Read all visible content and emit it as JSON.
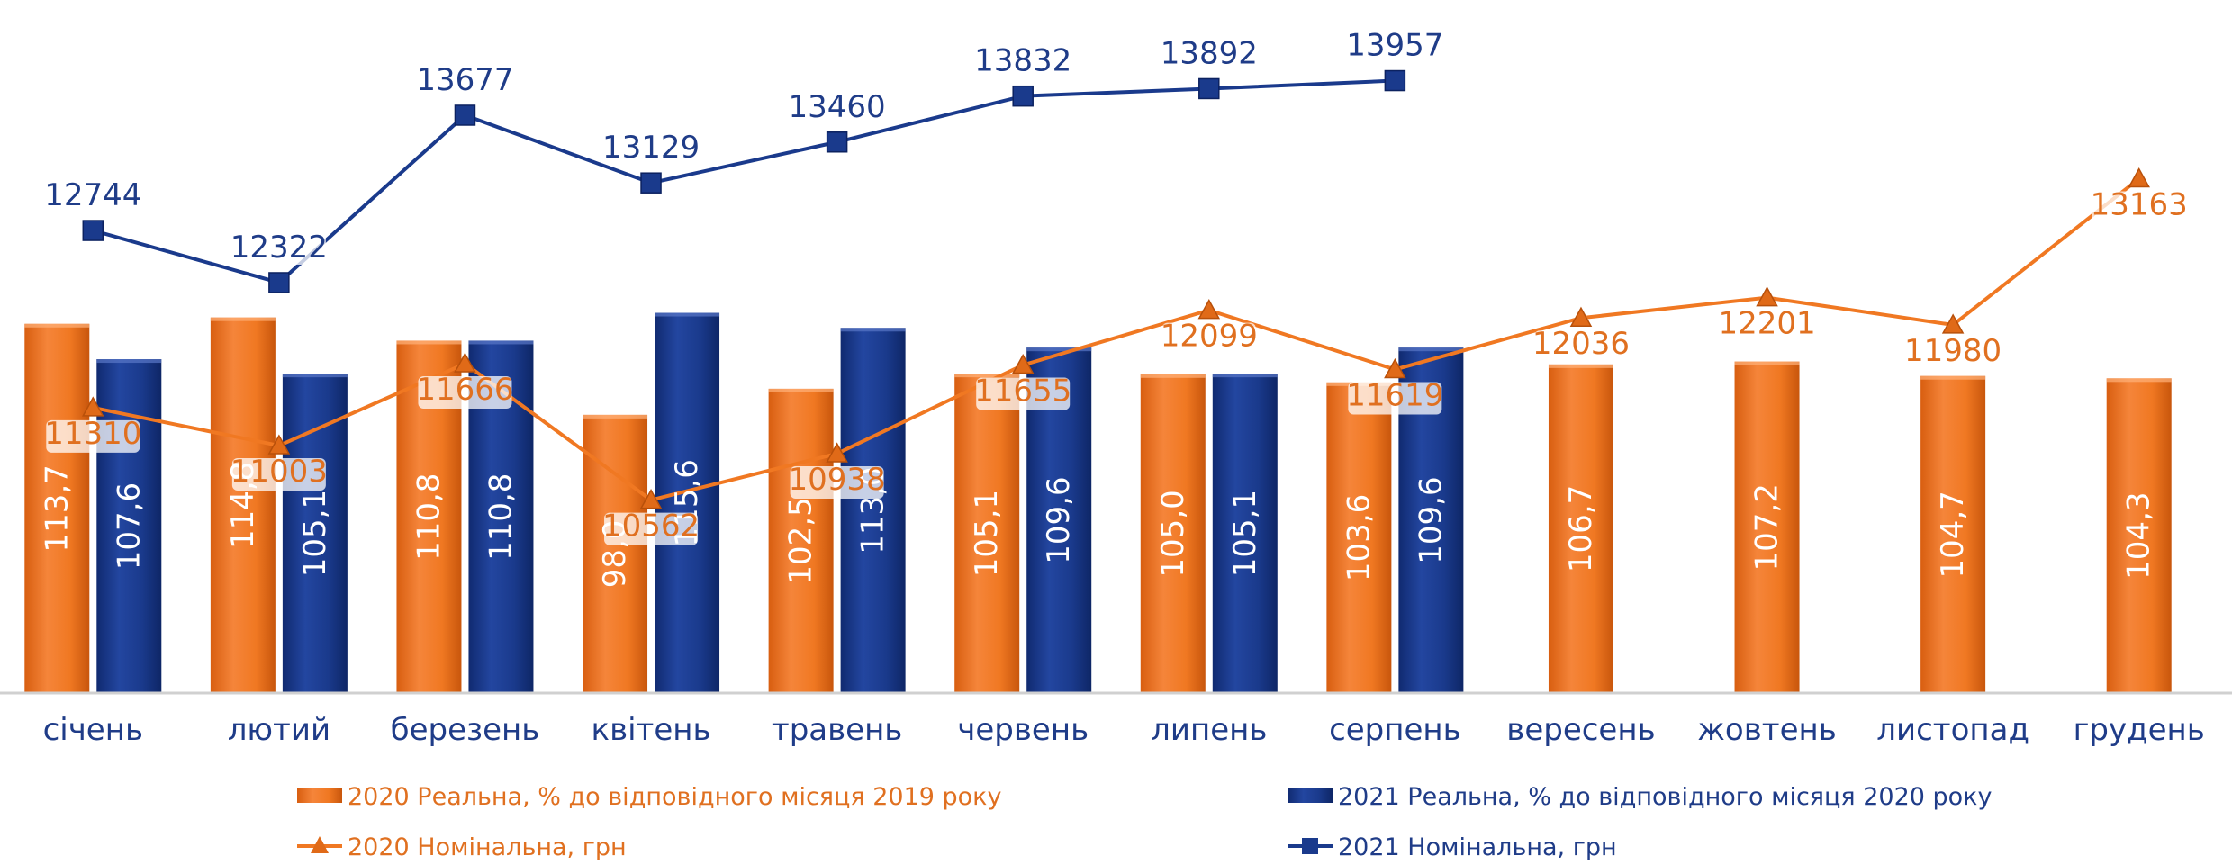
{
  "chart_data": {
    "type": "bar",
    "categories": [
      "січень",
      "лютий",
      "березень",
      "квітень",
      "травень",
      "червень",
      "липень",
      "серпень",
      "вересень",
      "жовтень",
      "листопад",
      "грудень"
    ],
    "series": [
      {
        "name": "2020 Реальна, % до відповідного місяця 2019 року",
        "kind": "bar",
        "color": "#f07822",
        "values": [
          113.7,
          114.8,
          110.8,
          98.0,
          102.5,
          105.1,
          105.0,
          103.6,
          106.7,
          107.2,
          104.7,
          104.3
        ],
        "labels": [
          "113,7",
          "114,8",
          "110,8",
          "98,0",
          "102,5",
          "105,1",
          "105,0",
          "103,6",
          "106,7",
          "107,2",
          "104,7",
          "104,3"
        ]
      },
      {
        "name": "2021 Реальна, % до відповідного місяця 2020 року",
        "kind": "bar",
        "color": "#1a3a8c",
        "values": [
          107.6,
          105.1,
          110.8,
          115.6,
          113.0,
          109.6,
          105.1,
          109.6,
          null,
          null,
          null,
          null
        ],
        "labels": [
          "107,6",
          "105,1",
          "110,8",
          "115,6",
          "113,0",
          "109,6",
          "105,1",
          "109,6",
          null,
          null,
          null,
          null
        ]
      },
      {
        "name": "2020 Номінальна, грн",
        "kind": "line",
        "marker": "triangle",
        "color": "#f07822",
        "values": [
          11310,
          11003,
          11666,
          10562,
          10938,
          11655,
          12099,
          11619,
          12036,
          12201,
          11980,
          13163
        ],
        "labels": [
          "11310",
          "11003",
          "11666",
          "10562",
          "10938",
          "11655",
          "12099",
          "11619",
          "12036",
          "12201",
          "11980",
          "13163"
        ]
      },
      {
        "name": "2021 Номінальна, грн",
        "kind": "line",
        "marker": "square",
        "color": "#1a3a8c",
        "values": [
          12744,
          12322,
          13677,
          13129,
          13460,
          13832,
          13892,
          13957,
          null,
          null,
          null,
          null
        ],
        "labels": [
          "12744",
          "12322",
          "13677",
          "13129",
          "13460",
          "13832",
          "13892",
          "13957",
          null,
          null,
          null,
          null
        ]
      }
    ],
    "legend": {
      "placement": "bottom",
      "items": [
        "2020 Реальна, % до відповідного місяця 2019 року",
        "2021 Реальна, % до відповідного місяця 2020 року",
        "2020 Номінальна, грн",
        "2021 Номінальна, грн"
      ]
    },
    "bar_axis_range": [
      0,
      118
    ],
    "line_axis_range": [
      9000,
      14500
    ],
    "grid": false,
    "title": "",
    "xlabel": "",
    "ylabel": ""
  }
}
